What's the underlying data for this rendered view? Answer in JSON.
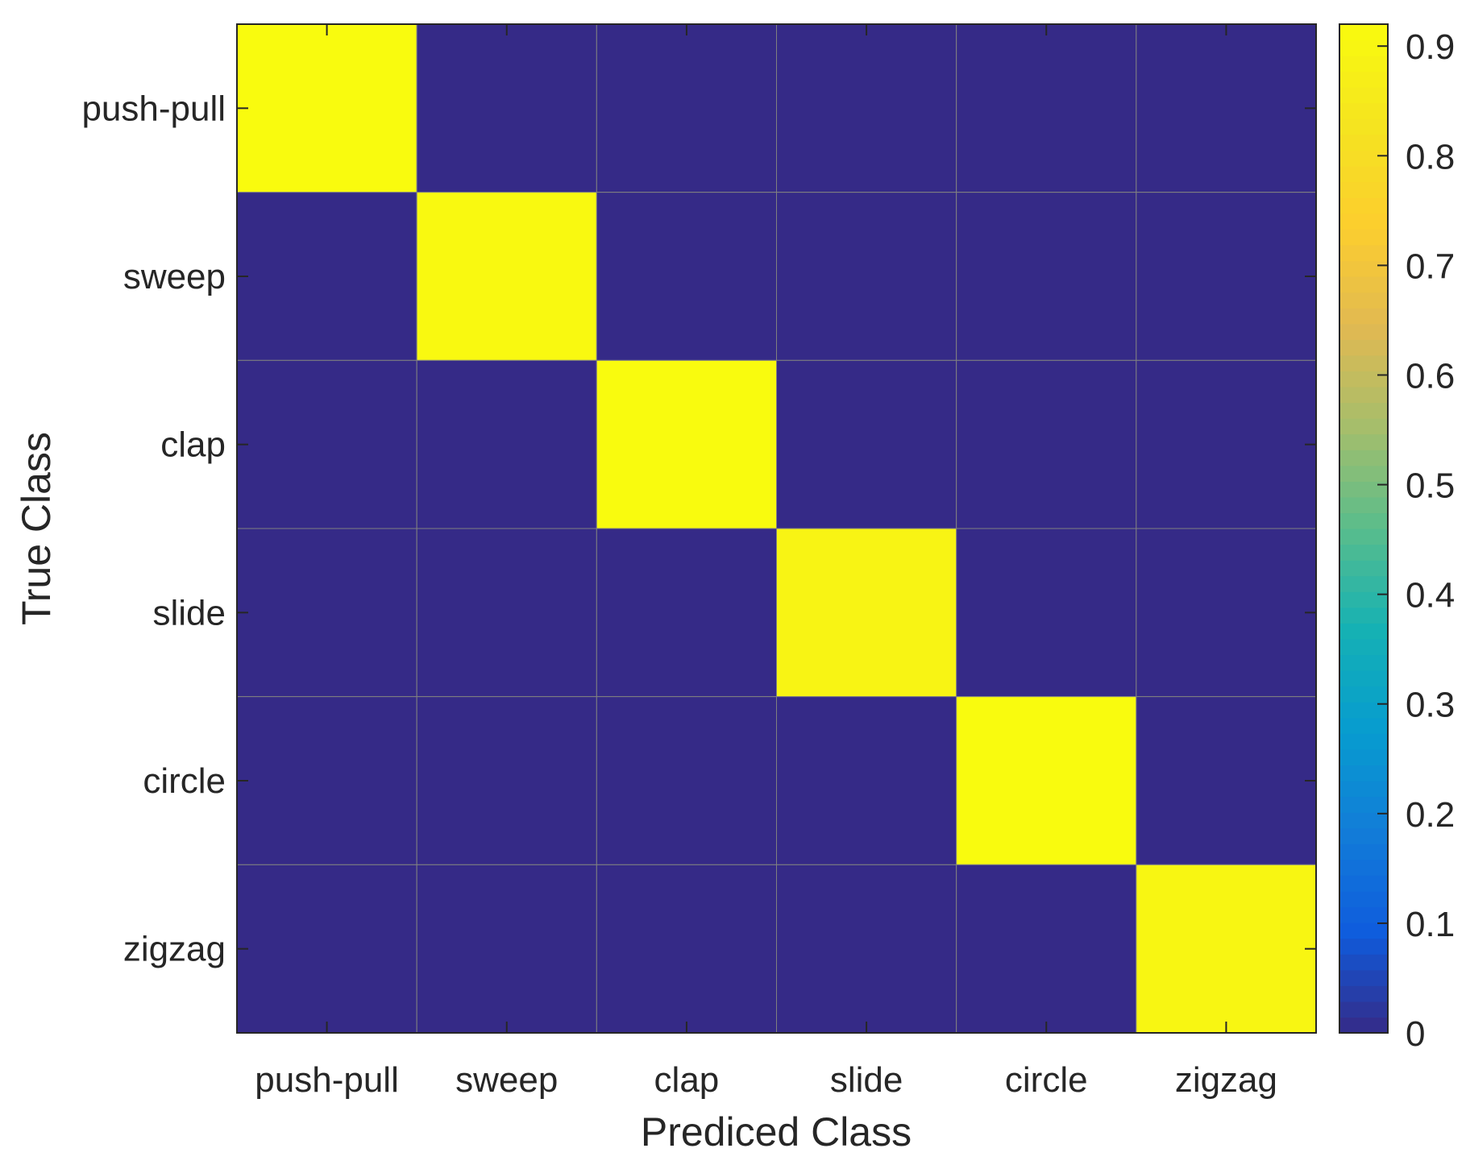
{
  "chart_data": {
    "type": "heatmap",
    "xlabel": "Prediced Class",
    "ylabel": "True Class",
    "x_categories": [
      "push-pull",
      "sweep",
      "clap",
      "slide",
      "circle",
      "zigzag"
    ],
    "y_categories": [
      "push-pull",
      "sweep",
      "clap",
      "slide",
      "circle",
      "zigzag"
    ],
    "values": [
      [
        0.92,
        0,
        0,
        0,
        0,
        0
      ],
      [
        0,
        0.91,
        0,
        0,
        0,
        0
      ],
      [
        0,
        0,
        0.92,
        0,
        0,
        0
      ],
      [
        0,
        0,
        0,
        0.89,
        0,
        0
      ],
      [
        0,
        0,
        0,
        0,
        0.92,
        0
      ],
      [
        0,
        0,
        0,
        0,
        0,
        0.9
      ]
    ],
    "colorbar": {
      "range": [
        0,
        0.92
      ],
      "ticks": [
        0,
        0.1,
        0.2,
        0.3,
        0.4,
        0.5,
        0.6,
        0.7,
        0.8,
        0.9
      ],
      "tick_labels": [
        "0",
        "0.1",
        "0.2",
        "0.3",
        "0.4",
        "0.5",
        "0.6",
        "0.7",
        "0.8",
        "0.9"
      ],
      "colormap": "parula",
      "placement": "right"
    },
    "grid": false
  }
}
